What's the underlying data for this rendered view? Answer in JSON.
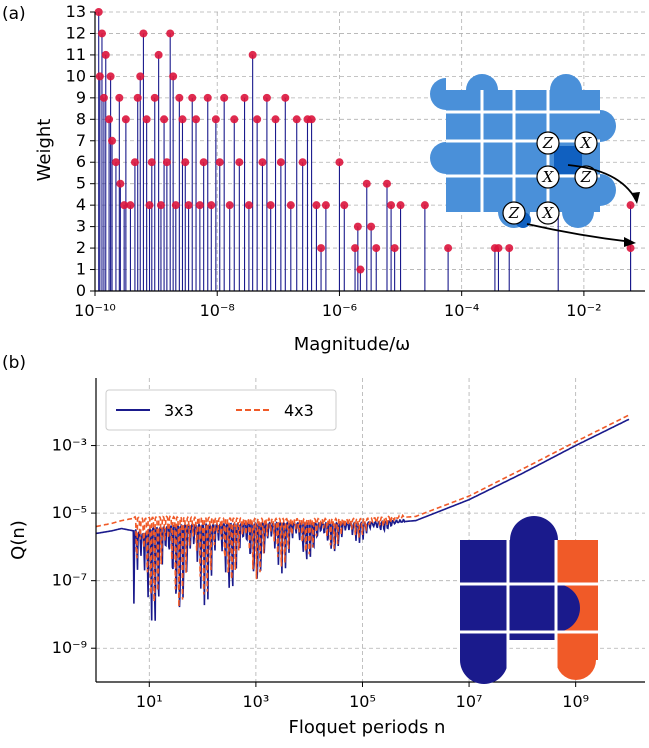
{
  "chart_data": [
    {
      "panel": "(a)",
      "type": "scatter",
      "xlabel": "Magnitude/ω",
      "ylabel": "Weight",
      "xscale": "log",
      "xlim": [
        1e-10,
        0.1
      ],
      "ylim": [
        0,
        13
      ],
      "x_ticks": [
        1e-10,
        1e-08,
        1e-06,
        0.0001,
        0.01
      ],
      "x_tick_labels": [
        "10⁻¹⁰",
        "10⁻⁸",
        "10⁻⁶",
        "10⁻⁴",
        "10⁻²"
      ],
      "y_ticks": [
        0,
        1,
        2,
        3,
        4,
        5,
        6,
        7,
        8,
        9,
        10,
        11,
        12,
        13
      ],
      "grid": true,
      "marker_color": "#dc143c",
      "stem_color": "#1a1a8c",
      "points": [
        [
          1.15e-10,
          13
        ],
        [
          1.3e-10,
          12
        ],
        [
          1.5e-10,
          11
        ],
        [
          1.2e-10,
          10
        ],
        [
          1.4e-10,
          9
        ],
        [
          1.7e-10,
          8
        ],
        [
          1.9e-10,
          7
        ],
        [
          2.2e-10,
          6
        ],
        [
          2.6e-10,
          5
        ],
        [
          3e-10,
          4
        ],
        [
          1.8e-10,
          10
        ],
        [
          2.5e-10,
          9
        ],
        [
          3.2e-10,
          8
        ],
        [
          3.8e-10,
          4
        ],
        [
          4.5e-10,
          6
        ],
        [
          5e-10,
          9
        ],
        [
          5.5e-10,
          10
        ],
        [
          6.2e-10,
          12
        ],
        [
          7e-10,
          8
        ],
        [
          7.8e-10,
          4
        ],
        [
          8.5e-10,
          6
        ],
        [
          9.5e-10,
          9
        ],
        [
          1.1e-09,
          11
        ],
        [
          1.2e-09,
          4
        ],
        [
          1.35e-09,
          8
        ],
        [
          1.5e-09,
          6
        ],
        [
          1.7e-09,
          12
        ],
        [
          1.9e-09,
          10
        ],
        [
          2.1e-09,
          4
        ],
        [
          2.4e-09,
          9
        ],
        [
          2.7e-09,
          8
        ],
        [
          3e-09,
          6
        ],
        [
          3.4e-09,
          4
        ],
        [
          3.9e-09,
          9
        ],
        [
          4.5e-09,
          8
        ],
        [
          5.2e-09,
          4
        ],
        [
          6e-09,
          6
        ],
        [
          7e-09,
          9
        ],
        [
          8e-09,
          4
        ],
        [
          9.5e-09,
          8
        ],
        [
          1.1e-08,
          6
        ],
        [
          1.3e-08,
          9
        ],
        [
          1.6e-08,
          4
        ],
        [
          1.9e-08,
          8
        ],
        [
          2.3e-08,
          6
        ],
        [
          2.8e-08,
          9
        ],
        [
          3.3e-08,
          4
        ],
        [
          3.8e-08,
          11
        ],
        [
          4.5e-08,
          8
        ],
        [
          5.5e-08,
          6
        ],
        [
          6.5e-08,
          9
        ],
        [
          7.5e-08,
          4
        ],
        [
          9e-08,
          8
        ],
        [
          1.1e-07,
          6
        ],
        [
          1.3e-07,
          9
        ],
        [
          1.6e-07,
          4
        ],
        [
          2e-07,
          8
        ],
        [
          2.5e-07,
          6
        ],
        [
          3e-07,
          8
        ],
        [
          3.5e-07,
          8
        ],
        [
          4.2e-07,
          4
        ],
        [
          5e-07,
          2
        ],
        [
          6e-07,
          4
        ],
        [
          1e-06,
          6
        ],
        [
          1.2e-06,
          4
        ],
        [
          1.8e-06,
          2
        ],
        [
          2e-06,
          3
        ],
        [
          2.2e-06,
          1
        ],
        [
          2.8e-06,
          5
        ],
        [
          3.3e-06,
          3
        ],
        [
          4e-06,
          2
        ],
        [
          6e-06,
          5
        ],
        [
          7e-06,
          4
        ],
        [
          8e-06,
          2
        ],
        [
          1e-05,
          4
        ],
        [
          2.5e-05,
          4
        ],
        [
          6e-05,
          2
        ],
        [
          0.00035,
          2
        ],
        [
          0.0004,
          2
        ],
        [
          0.0006,
          2
        ],
        [
          0.0038,
          6
        ],
        [
          0.058,
          4
        ],
        [
          0.058,
          2
        ]
      ]
    },
    {
      "panel": "(b)",
      "type": "line",
      "xlabel": "Floquet periods n",
      "ylabel": "Q(n)",
      "xscale": "log",
      "yscale": "log",
      "xlim": [
        1,
        20000000000.0
      ],
      "ylim": [
        1e-10,
        0.1
      ],
      "x_ticks": [
        10,
        1000,
        100000,
        10000000,
        1000000000
      ],
      "x_tick_labels": [
        "10¹",
        "10³",
        "10⁵",
        "10⁷",
        "10⁹"
      ],
      "y_ticks": [
        1e-09,
        1e-07,
        1e-05,
        0.001
      ],
      "y_tick_labels": [
        "10⁻⁹",
        "10⁻⁷",
        "10⁻⁵",
        "10⁻³"
      ],
      "grid": true,
      "legend_position": "top-left",
      "series": [
        {
          "name": "3x3",
          "color": "#1a1a8c",
          "style": "solid",
          "x": [
            1,
            2,
            3,
            5,
            8,
            10,
            20,
            50,
            100,
            1000,
            10000,
            100000,
            1000000,
            10000000,
            100000000,
            1000000000,
            10000000000
          ],
          "y": [
            2.5e-06,
            3e-06,
            3.5e-06,
            3e-06,
            2e-06,
            3e-06,
            3.5e-06,
            4e-06,
            4e-06,
            4.5e-06,
            4.5e-06,
            4.5e-06,
            6e-06,
            2.5e-05,
            0.00015,
            0.001,
            0.006
          ]
        },
        {
          "name": "4x3",
          "color": "#f05a28",
          "style": "dashed",
          "x": [
            1,
            2,
            3,
            5,
            8,
            10,
            20,
            50,
            100,
            1000,
            10000,
            100000,
            1000000,
            10000000,
            100000000,
            1000000000,
            10000000000
          ],
          "y": [
            4e-06,
            5e-06,
            6e-06,
            7e-06,
            6e-06,
            6.5e-06,
            7e-06,
            6.5e-06,
            6.5e-06,
            6e-06,
            6e-06,
            6e-06,
            8e-06,
            3.2e-05,
            0.0002,
            0.0013,
            0.008
          ]
        }
      ]
    }
  ],
  "inset_a": {
    "operators": [
      "Z",
      "X",
      "X",
      "Z",
      "Z",
      "X"
    ],
    "fill_color": "#4a90d9",
    "dark_color": "#1060c0"
  },
  "inset_b": {
    "left_color": "#1a1a8c",
    "right_color": "#f05a28"
  }
}
